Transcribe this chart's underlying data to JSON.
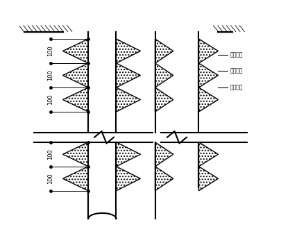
{
  "bg_color": "#ffffff",
  "line_color": "#000000",
  "labels": [
    "护壁桩塞",
    "护壁钢筋",
    "桩身钢筋"
  ],
  "figsize": [
    4.05,
    3.5
  ],
  "dpi": 100
}
